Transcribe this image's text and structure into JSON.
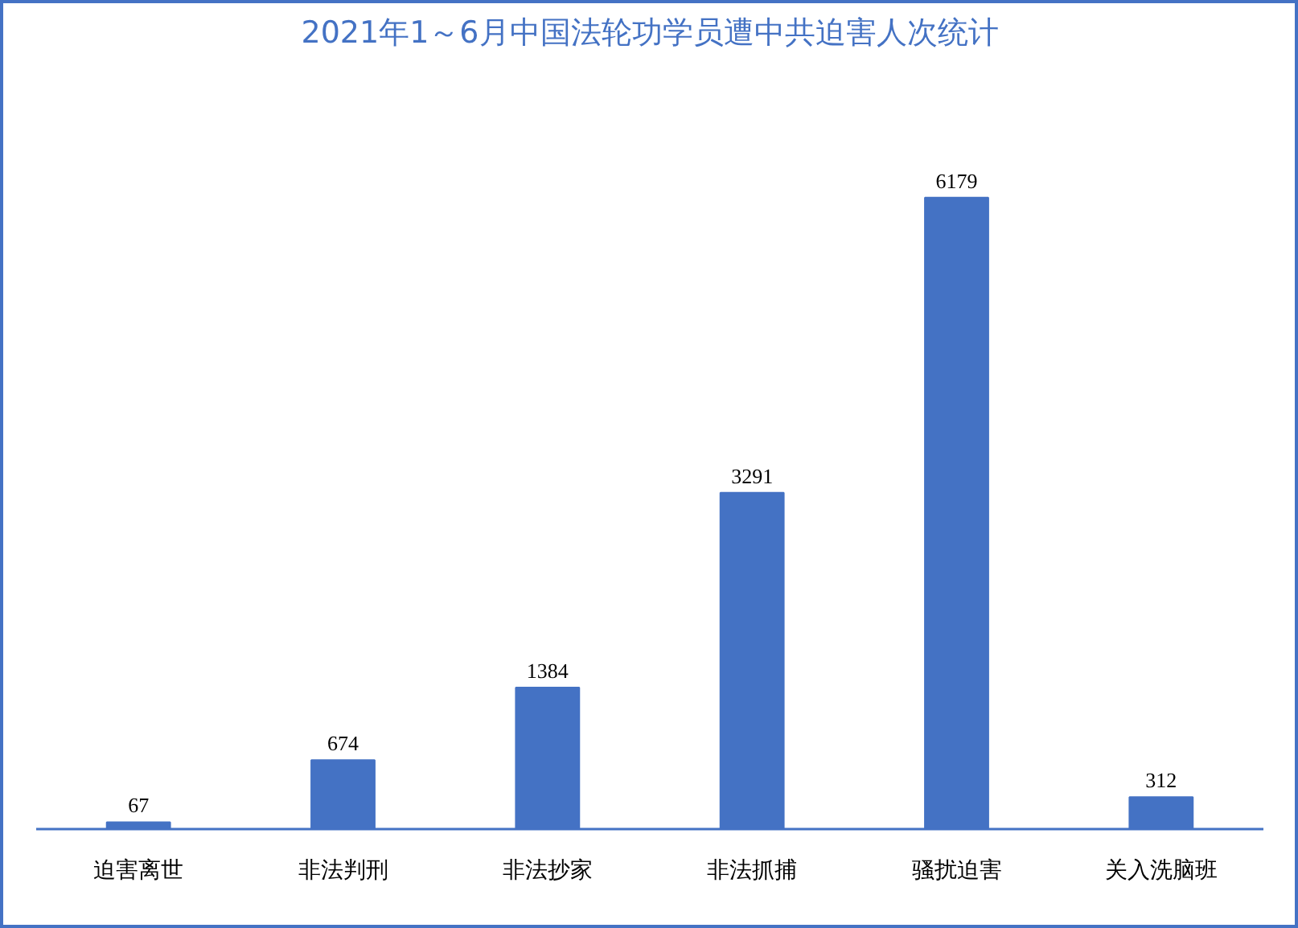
{
  "chart_data": {
    "type": "bar",
    "title": "2021年1～6月中国法轮功学员遭中共迫害人次统计",
    "categories": [
      "迫害离世",
      "非法判刑",
      "非法抄家",
      "非法抓捕",
      "骚扰迫害",
      "关入洗脑班"
    ],
    "values": [
      67,
      674,
      1384,
      3291,
      6179,
      312
    ],
    "color": "#4472c4",
    "data_labels": true,
    "tick_labels": "x"
  }
}
